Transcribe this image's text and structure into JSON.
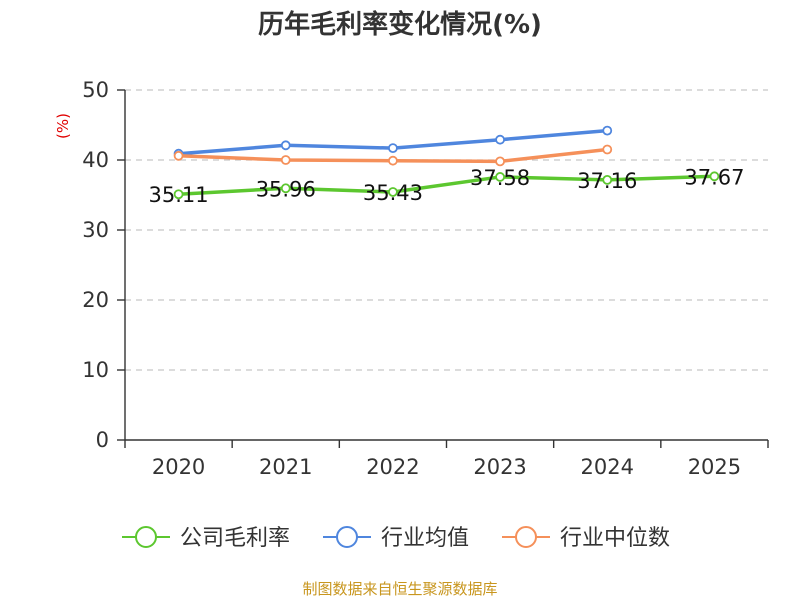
{
  "chart_data": {
    "type": "line",
    "title": "历年毛利率变化情况(%)",
    "ylabel": "(%)",
    "xlabel": "",
    "categories": [
      "2020",
      "2021",
      "2022",
      "2023",
      "2024",
      "2025"
    ],
    "ylim": [
      0,
      50
    ],
    "yticks": [
      0,
      10,
      20,
      30,
      40,
      50
    ],
    "grid": true,
    "legend_position": "bottom",
    "series": [
      {
        "name": "公司毛利率",
        "color": "#5cc72f",
        "values": [
          35.11,
          35.96,
          35.43,
          37.58,
          37.16,
          37.67
        ],
        "labels": [
          "35.11",
          "35.96",
          "35.43",
          "37.58",
          "37.16",
          "37.67"
        ]
      },
      {
        "name": "行业均值",
        "color": "#4f86de",
        "values": [
          40.9,
          42.1,
          41.7,
          42.9,
          44.2,
          null
        ]
      },
      {
        "name": "行业中位数",
        "color": "#f5905a",
        "values": [
          40.6,
          40.0,
          39.9,
          39.8,
          41.5,
          null
        ]
      }
    ]
  },
  "source": "制图数据来自恒生聚源数据库"
}
